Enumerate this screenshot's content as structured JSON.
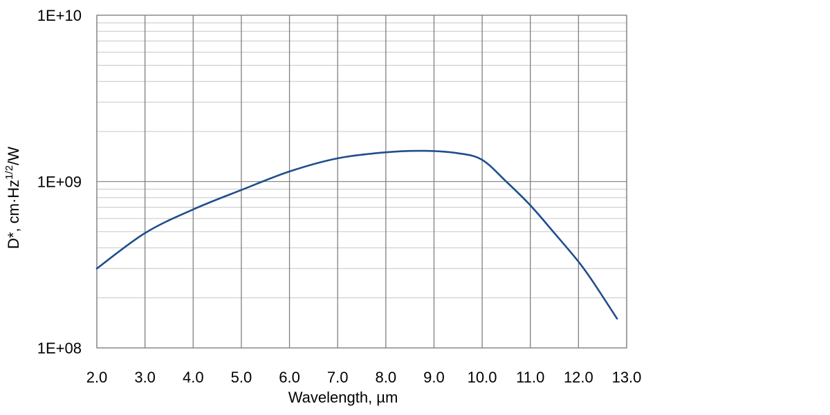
{
  "chart_data": {
    "type": "line",
    "xlabel": "Wavelength, µm",
    "ylabel": {
      "prefix": "D*, cm·Hz",
      "sup": "1/2",
      "suffix": "/W"
    },
    "xlim": [
      2.0,
      13.0
    ],
    "ylim": [
      100000000.0,
      10000000000.0
    ],
    "yscale": "log",
    "grid": true,
    "legend": "none",
    "x_ticks": [
      "2.0",
      "3.0",
      "4.0",
      "5.0",
      "6.0",
      "7.0",
      "8.0",
      "9.0",
      "10.0",
      "11.0",
      "12.0",
      "13.0"
    ],
    "y_ticks": [
      "1E+08",
      "1E+09",
      "1E+10"
    ],
    "series": [
      {
        "color": "#1f4e8c",
        "x": [
          2.0,
          3.0,
          4.0,
          5.0,
          6.0,
          7.0,
          8.0,
          8.8,
          9.5,
          10.0,
          10.5,
          11.0,
          11.5,
          12.0,
          12.3,
          12.8
        ],
        "y": [
          300000000.0,
          490000000.0,
          680000000.0,
          890000000.0,
          1150000000.0,
          1380000000.0,
          1500000000.0,
          1530000000.0,
          1480000000.0,
          1350000000.0,
          1000000000.0,
          720000000.0,
          490000000.0,
          330000000.0,
          250000000.0,
          150000000.0
        ]
      }
    ]
  }
}
